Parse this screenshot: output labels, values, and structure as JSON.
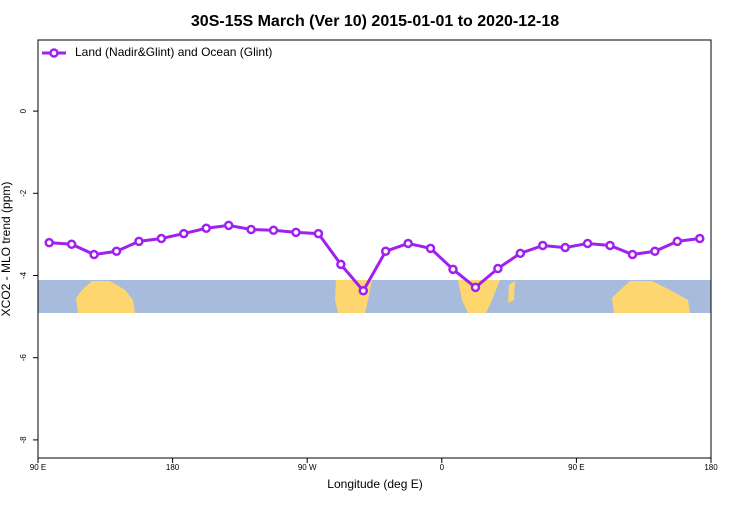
{
  "chart_data": {
    "type": "line",
    "title": "30S-15S March (Ver 10)   2015-01-01 to 2020-12-18",
    "x_label": "Longitude (deg E)",
    "y_label": "XCO2 - MLO trend (ppm)",
    "x": [
      97.5,
      112.5,
      127.5,
      142.5,
      157.5,
      172.5,
      187.5,
      202.5,
      217.5,
      232.5,
      247.5,
      262.5,
      277.5,
      292.5,
      307.5,
      322.5,
      337.5,
      352.5,
      367.5,
      382.5,
      397.5,
      412.5,
      427.5,
      442.5,
      457.5,
      472.5,
      487.5,
      502.5,
      517.5,
      532.5
    ],
    "series": [
      {
        "name": "Land (Nadir&Glint) and Ocean (Glint)",
        "color": "#a020f0",
        "values": [
          -3.2,
          -3.24,
          -3.49,
          -3.41,
          -3.17,
          -3.1,
          -2.98,
          -2.85,
          -2.78,
          -2.88,
          -2.9,
          -2.95,
          -2.98,
          -3.73,
          -4.37,
          -3.41,
          -3.22,
          -3.34,
          -3.85,
          -4.29,
          -3.83,
          -3.46,
          -3.27,
          -3.32,
          -3.22,
          -3.27,
          -3.49,
          -3.41,
          -3.17,
          -3.1
        ]
      }
    ],
    "xlim": [
      90,
      540
    ],
    "xticks": [
      {
        "value": 90,
        "label": "90 E"
      },
      180,
      {
        "value": 270,
        "label": "90 W"
      },
      {
        "value": 360,
        "label": "0"
      },
      {
        "value": 450,
        "label": "90 E"
      },
      {
        "value": 540,
        "label": "180"
      }
    ],
    "ylim": [
      -8.44,
      1.73
    ],
    "yticks": [
      0,
      -2,
      -4,
      -6,
      -8
    ],
    "legend": "top-left"
  }
}
